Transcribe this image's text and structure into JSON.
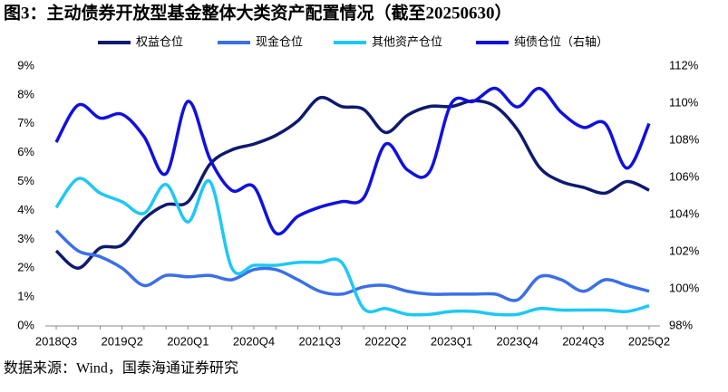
{
  "chart_data": {
    "type": "line",
    "title": "图3：主动债券开放型基金整体大类资产配置情况（截至20250630）",
    "source": "数据来源：Wind，国泰海通证券研究",
    "categories": [
      "2018Q3",
      null,
      null,
      "2019Q2",
      null,
      null,
      "2020Q1",
      null,
      null,
      "2020Q4",
      null,
      null,
      "2021Q3",
      null,
      null,
      "2022Q2",
      null,
      null,
      "2023Q1",
      null,
      null,
      "2023Q4",
      null,
      null,
      "2024Q3",
      null,
      null,
      "2025Q2"
    ],
    "series": [
      {
        "name": "权益仓位",
        "color": "#0d1a6e",
        "values": [
          2.6,
          2.0,
          2.7,
          2.8,
          3.7,
          4.2,
          4.3,
          5.6,
          6.1,
          6.3,
          6.6,
          7.1,
          7.9,
          7.6,
          7.5,
          6.7,
          7.3,
          7.6,
          7.6,
          7.8,
          7.6,
          6.8,
          5.5,
          5.0,
          4.8,
          4.6,
          5.0,
          4.7
        ]
      },
      {
        "name": "现金仓位",
        "color": "#3b6fe8",
        "values": [
          3.3,
          2.6,
          2.4,
          2.0,
          1.4,
          1.75,
          1.7,
          1.75,
          1.6,
          1.95,
          1.95,
          1.6,
          1.2,
          1.1,
          1.35,
          1.4,
          1.2,
          1.1,
          1.1,
          1.1,
          1.1,
          0.9,
          1.7,
          1.6,
          1.2,
          1.6,
          1.4,
          1.2
        ]
      },
      {
        "name": "其他资产仓位",
        "color": "#1ec8f5",
        "values": [
          4.1,
          5.1,
          4.6,
          4.3,
          3.9,
          4.9,
          3.6,
          5.0,
          2.0,
          2.1,
          2.1,
          2.2,
          2.2,
          2.2,
          0.6,
          0.6,
          0.4,
          0.4,
          0.5,
          0.5,
          0.4,
          0.4,
          0.6,
          0.55,
          0.55,
          0.55,
          0.5,
          0.7
        ]
      },
      {
        "name": "纯债仓位（右轴）",
        "color": "#1010e0",
        "axis": "y2",
        "values": [
          107.9,
          109.9,
          109.2,
          109.4,
          108.2,
          106.2,
          110.1,
          107.0,
          105.3,
          105.5,
          103.0,
          103.9,
          104.4,
          104.7,
          104.9,
          107.8,
          106.4,
          106.3,
          110.0,
          110.1,
          110.8,
          109.8,
          110.8,
          109.5,
          108.7,
          108.9,
          106.5,
          108.9
        ]
      }
    ],
    "ylim": [
      0,
      9
    ],
    "yticks": [
      {
        "value": 0,
        "label": "0%"
      },
      {
        "value": 1,
        "label": "1%"
      },
      {
        "value": 2,
        "label": "2%"
      },
      {
        "value": 3,
        "label": "3%"
      },
      {
        "value": 4,
        "label": "4%"
      },
      {
        "value": 5,
        "label": "5%"
      },
      {
        "value": 6,
        "label": "6%"
      },
      {
        "value": 7,
        "label": "7%"
      },
      {
        "value": 8,
        "label": "8%"
      },
      {
        "value": 9,
        "label": "9%"
      }
    ],
    "y2lim": [
      98,
      112
    ],
    "y2ticks": [
      {
        "value": 98,
        "label": "98%"
      },
      {
        "value": 100,
        "label": "100%"
      },
      {
        "value": 102,
        "label": "102%"
      },
      {
        "value": 104,
        "label": "104%"
      },
      {
        "value": 106,
        "label": "106%"
      },
      {
        "value": 108,
        "label": "108%"
      },
      {
        "value": 110,
        "label": "110%"
      },
      {
        "value": 112,
        "label": "112%"
      }
    ],
    "legend": "top",
    "grid": false
  }
}
